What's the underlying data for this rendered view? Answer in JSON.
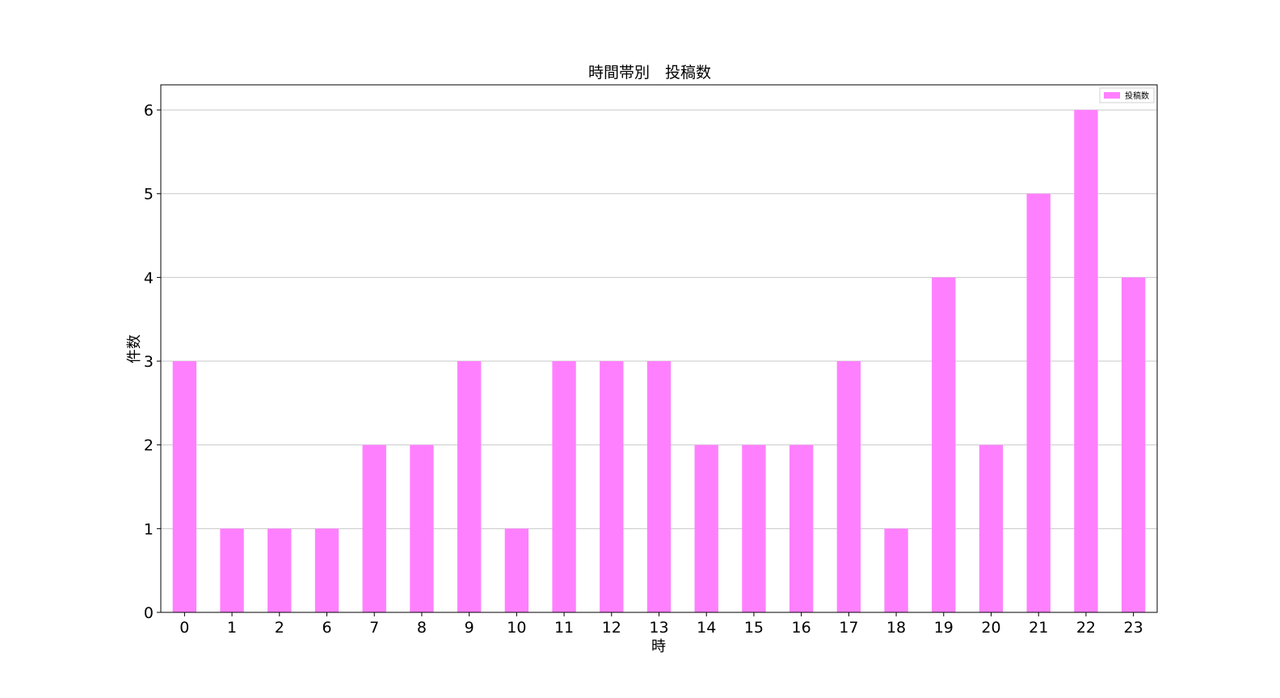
{
  "chart_data": {
    "type": "bar",
    "title": "時間帯別　投稿数",
    "xlabel": "時",
    "ylabel": "件数",
    "categories": [
      "0",
      "1",
      "2",
      "6",
      "7",
      "8",
      "9",
      "10",
      "11",
      "12",
      "13",
      "14",
      "15",
      "16",
      "17",
      "18",
      "19",
      "20",
      "21",
      "22",
      "23"
    ],
    "series": [
      {
        "name": "投稿数",
        "values": [
          3,
          1,
          1,
          1,
          2,
          2,
          3,
          1,
          3,
          3,
          3,
          2,
          2,
          2,
          3,
          1,
          4,
          2,
          5,
          6,
          4
        ],
        "color": "#ff80ff"
      }
    ],
    "ylim": [
      0,
      6.3
    ],
    "yticks": [
      0,
      1,
      2,
      3,
      4,
      5,
      6
    ],
    "grid": "y-only",
    "legend": "top-right"
  }
}
